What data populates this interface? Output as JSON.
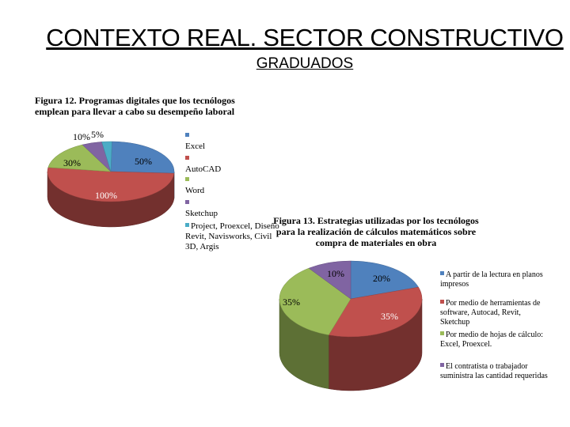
{
  "header": {
    "title": "CONTEXTO REAL. SECTOR CONSTRUCTIVO",
    "subtitle": "GRADUADOS"
  },
  "chart_data": [
    {
      "type": "pie",
      "title": "Figura 12. Programas digitales que los tecnólogos emplean para llevar a cabo su desempeño laboral",
      "categories": [
        "Excel",
        "AutoCAD",
        "Word",
        "Sketchup",
        "Project, Proexcel, Diseño Revit, Navisworks, Civil 3D, Argis"
      ],
      "values": [
        50,
        100,
        30,
        10,
        5
      ],
      "data_labels": [
        "50%",
        "100%",
        "30%",
        "10%",
        "5%"
      ],
      "colors": [
        "#4f81bd",
        "#c0504d",
        "#9bbb59",
        "#8064a2",
        "#4bacc6"
      ],
      "legend_position": "right"
    },
    {
      "type": "pie",
      "title": "Figura 13. Estrategias utilizadas por los tecnólogos para la realización de cálculos matemáticos sobre compra de materiales en obra",
      "categories": [
        "A partir de la lectura en planos impresos",
        "Por medio de herramientas de software, Autocad, Revit, Sketchup",
        "Por medio de hojas de cálculo: Excel, Proexcel.",
        "El contratista o trabajador suministra las cantidad requeridas"
      ],
      "values": [
        20,
        35,
        35,
        10
      ],
      "data_labels": [
        "20%",
        "35%",
        "35%",
        "10%"
      ],
      "colors": [
        "#4f81bd",
        "#c0504d",
        "#9bbb59",
        "#8064a2"
      ],
      "legend_position": "right"
    }
  ]
}
